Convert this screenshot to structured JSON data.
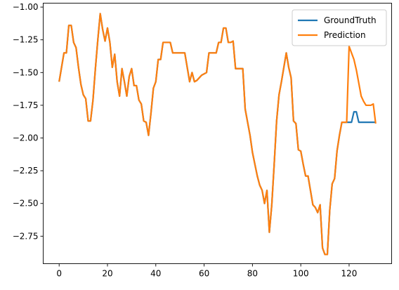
{
  "chart_data": {
    "type": "line",
    "title": "",
    "xlabel": "",
    "ylabel": "",
    "xlim": [
      -6.6,
      137.6
    ],
    "ylim": [
      -2.96,
      -0.97
    ],
    "xticks": [
      0,
      20,
      40,
      60,
      80,
      100,
      120
    ],
    "yticks": [
      -1.0,
      -1.25,
      -1.5,
      -1.75,
      -2.0,
      -2.25,
      -2.5,
      -2.75
    ],
    "grid": false,
    "legend": "top-right",
    "series": [
      {
        "name": "GroundTruth",
        "color": "#1f77b4",
        "x": [
          0,
          1,
          2,
          3,
          4,
          5,
          6,
          7,
          8,
          9,
          10,
          11,
          12,
          13,
          14,
          15,
          16,
          17,
          18,
          19,
          20,
          21,
          22,
          23,
          24,
          25,
          26,
          27,
          28,
          29,
          30,
          31,
          32,
          33,
          34,
          35,
          36,
          37,
          38,
          39,
          40,
          41,
          42,
          43,
          44,
          45,
          46,
          47,
          48,
          49,
          50,
          51,
          52,
          53,
          54,
          55,
          56,
          57,
          58,
          59,
          60,
          61,
          62,
          63,
          64,
          65,
          66,
          67,
          68,
          69,
          70,
          71,
          72,
          73,
          74,
          75,
          76,
          77,
          78,
          79,
          80,
          81,
          82,
          83,
          84,
          85,
          86,
          87,
          88,
          89,
          90,
          91,
          92,
          93,
          94,
          95,
          96,
          97,
          98,
          99,
          100,
          101,
          102,
          103,
          104,
          105,
          106,
          107,
          108,
          109,
          110,
          111,
          112,
          113,
          114,
          115,
          116,
          117,
          118,
          119,
          120,
          121,
          122,
          123,
          124,
          125,
          126,
          127,
          128,
          129,
          130,
          131
        ],
        "y": [
          -1.57,
          -1.46,
          -1.35,
          -1.35,
          -1.14,
          -1.14,
          -1.27,
          -1.31,
          -1.46,
          -1.59,
          -1.67,
          -1.7,
          -1.87,
          -1.87,
          -1.71,
          -1.47,
          -1.25,
          -1.05,
          -1.17,
          -1.26,
          -1.16,
          -1.27,
          -1.46,
          -1.36,
          -1.57,
          -1.68,
          -1.47,
          -1.57,
          -1.68,
          -1.53,
          -1.47,
          -1.6,
          -1.6,
          -1.71,
          -1.74,
          -1.87,
          -1.88,
          -1.98,
          -1.81,
          -1.62,
          -1.57,
          -1.4,
          -1.4,
          -1.27,
          -1.27,
          -1.27,
          -1.27,
          -1.35,
          -1.35,
          -1.35,
          -1.35,
          -1.35,
          -1.35,
          -1.46,
          -1.57,
          -1.5,
          -1.57,
          -1.56,
          -1.54,
          -1.52,
          -1.51,
          -1.5,
          -1.35,
          -1.35,
          -1.35,
          -1.35,
          -1.27,
          -1.27,
          -1.16,
          -1.16,
          -1.27,
          -1.27,
          -1.26,
          -1.47,
          -1.47,
          -1.47,
          -1.47,
          -1.78,
          -1.88,
          -1.98,
          -2.11,
          -2.2,
          -2.29,
          -2.36,
          -2.4,
          -2.5,
          -2.4,
          -2.72,
          -2.51,
          -2.2,
          -1.87,
          -1.67,
          -1.57,
          -1.46,
          -1.35,
          -1.46,
          -1.54,
          -1.87,
          -1.89,
          -2.09,
          -2.1,
          -2.2,
          -2.29,
          -2.29,
          -2.4,
          -2.51,
          -2.53,
          -2.57,
          -2.51,
          -2.84,
          -2.89,
          -2.89,
          -2.55,
          -2.35,
          -2.31,
          -2.1,
          -1.98,
          -1.88,
          -1.88,
          -1.88,
          -1.88,
          -1.88,
          -1.8,
          -1.8,
          -1.88,
          -1.88,
          -1.88,
          -1.88,
          -1.88,
          -1.88,
          -1.88,
          -1.88
        ]
      },
      {
        "name": "Prediction",
        "color": "#ff7f0e",
        "x": [
          0,
          1,
          2,
          3,
          4,
          5,
          6,
          7,
          8,
          9,
          10,
          11,
          12,
          13,
          14,
          15,
          16,
          17,
          18,
          19,
          20,
          21,
          22,
          23,
          24,
          25,
          26,
          27,
          28,
          29,
          30,
          31,
          32,
          33,
          34,
          35,
          36,
          37,
          38,
          39,
          40,
          41,
          42,
          43,
          44,
          45,
          46,
          47,
          48,
          49,
          50,
          51,
          52,
          53,
          54,
          55,
          56,
          57,
          58,
          59,
          60,
          61,
          62,
          63,
          64,
          65,
          66,
          67,
          68,
          69,
          70,
          71,
          72,
          73,
          74,
          75,
          76,
          77,
          78,
          79,
          80,
          81,
          82,
          83,
          84,
          85,
          86,
          87,
          88,
          89,
          90,
          91,
          92,
          93,
          94,
          95,
          96,
          97,
          98,
          99,
          100,
          101,
          102,
          103,
          104,
          105,
          106,
          107,
          108,
          109,
          110,
          111,
          112,
          113,
          114,
          115,
          116,
          117,
          118,
          119,
          120,
          121,
          122,
          123,
          124,
          125,
          126,
          127,
          128,
          129,
          130,
          131
        ],
        "y": [
          -1.57,
          -1.46,
          -1.35,
          -1.35,
          -1.14,
          -1.14,
          -1.27,
          -1.31,
          -1.46,
          -1.59,
          -1.67,
          -1.7,
          -1.87,
          -1.87,
          -1.71,
          -1.47,
          -1.25,
          -1.05,
          -1.17,
          -1.26,
          -1.16,
          -1.27,
          -1.46,
          -1.36,
          -1.57,
          -1.68,
          -1.47,
          -1.57,
          -1.68,
          -1.53,
          -1.47,
          -1.6,
          -1.6,
          -1.71,
          -1.74,
          -1.87,
          -1.88,
          -1.98,
          -1.81,
          -1.62,
          -1.57,
          -1.4,
          -1.4,
          -1.27,
          -1.27,
          -1.27,
          -1.27,
          -1.35,
          -1.35,
          -1.35,
          -1.35,
          -1.35,
          -1.35,
          -1.46,
          -1.57,
          -1.5,
          -1.57,
          -1.56,
          -1.54,
          -1.52,
          -1.51,
          -1.5,
          -1.35,
          -1.35,
          -1.35,
          -1.35,
          -1.27,
          -1.27,
          -1.16,
          -1.16,
          -1.27,
          -1.27,
          -1.26,
          -1.47,
          -1.47,
          -1.47,
          -1.47,
          -1.78,
          -1.88,
          -1.98,
          -2.11,
          -2.2,
          -2.29,
          -2.36,
          -2.4,
          -2.5,
          -2.4,
          -2.72,
          -2.51,
          -2.2,
          -1.87,
          -1.67,
          -1.57,
          -1.46,
          -1.35,
          -1.46,
          -1.54,
          -1.87,
          -1.89,
          -2.09,
          -2.1,
          -2.2,
          -2.29,
          -2.29,
          -2.4,
          -2.51,
          -2.53,
          -2.57,
          -2.51,
          -2.84,
          -2.89,
          -2.89,
          -2.55,
          -2.35,
          -2.31,
          -2.1,
          -1.98,
          -1.88,
          -1.88,
          -1.88,
          -1.3,
          -1.35,
          -1.4,
          -1.48,
          -1.58,
          -1.68,
          -1.72,
          -1.75,
          -1.75,
          -1.75,
          -1.74,
          -1.89
        ]
      }
    ]
  }
}
